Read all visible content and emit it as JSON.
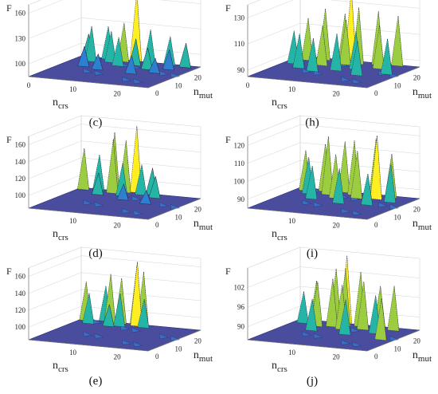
{
  "chart_data": [
    {
      "type": "surface",
      "caption": "(c)",
      "zlabel": "F",
      "xlabel": "n",
      "xlabel_sub": "crs",
      "ylabel": "n",
      "ylabel_sub": "mut",
      "x_ticks": [
        "0",
        "10",
        "20"
      ],
      "y_ticks": [
        "0",
        "10",
        "20"
      ],
      "z_ticks": [
        "100",
        "130",
        "160"
      ],
      "zlim": [
        85,
        170
      ],
      "peaks": [
        {
          "crs": 3,
          "mut": 3,
          "F": 115
        },
        {
          "crs": 5,
          "mut": 6,
          "F": 128
        },
        {
          "crs": 7,
          "mut": 2,
          "F": 125
        },
        {
          "crs": 9,
          "mut": 5,
          "F": 123
        },
        {
          "crs": 11,
          "mut": 3,
          "F": 132
        },
        {
          "crs": 12,
          "mut": 8,
          "F": 120
        },
        {
          "crs": 13,
          "mut": 1,
          "F": 168
        },
        {
          "crs": 15,
          "mut": 6,
          "F": 118
        },
        {
          "crs": 17,
          "mut": 3,
          "F": 127
        },
        {
          "crs": 19,
          "mut": 9,
          "F": 112
        },
        {
          "crs": 21,
          "mut": 2,
          "F": 120
        },
        {
          "crs": 23,
          "mut": 7,
          "F": 110
        },
        {
          "crs": 6,
          "mut": 12,
          "F": 110
        },
        {
          "crs": 10,
          "mut": 14,
          "F": 105
        },
        {
          "crs": 18,
          "mut": 15,
          "F": 108
        },
        {
          "crs": 25,
          "mut": 3,
          "F": 115
        },
        {
          "crs": 22,
          "mut": 12,
          "F": 104
        }
      ]
    },
    {
      "type": "surface",
      "caption": "(h)",
      "zlabel": "F",
      "xlabel": "n",
      "xlabel_sub": "crs",
      "ylabel": "n",
      "ylabel_sub": "mut",
      "x_ticks": [
        "0",
        "10",
        "20"
      ],
      "y_ticks": [
        "0",
        "10",
        "20"
      ],
      "z_ticks": [
        "90",
        "110",
        "130"
      ],
      "zlim": [
        85,
        140
      ],
      "peaks": [
        {
          "crs": 4,
          "mut": 5,
          "F": 118
        },
        {
          "crs": 7,
          "mut": 3,
          "F": 125
        },
        {
          "crs": 9,
          "mut": 9,
          "F": 116
        },
        {
          "crs": 11,
          "mut": 2,
          "F": 122
        },
        {
          "crs": 12,
          "mut": 1,
          "F": 140
        },
        {
          "crs": 13,
          "mut": 6,
          "F": 120
        },
        {
          "crs": 15,
          "mut": 4,
          "F": 129
        },
        {
          "crs": 17,
          "mut": 10,
          "F": 115
        },
        {
          "crs": 19,
          "mut": 3,
          "F": 127
        },
        {
          "crs": 21,
          "mut": 7,
          "F": 119
        },
        {
          "crs": 23,
          "mut": 2,
          "F": 124
        },
        {
          "crs": 25,
          "mut": 12,
          "F": 113
        },
        {
          "crs": 6,
          "mut": 14,
          "F": 112
        },
        {
          "crs": 10,
          "mut": 16,
          "F": 111
        },
        {
          "crs": 14,
          "mut": 13,
          "F": 114
        },
        {
          "crs": 20,
          "mut": 16,
          "F": 112
        },
        {
          "crs": 3,
          "mut": 10,
          "F": 111
        }
      ]
    },
    {
      "type": "surface",
      "caption": "(d)",
      "zlabel": "F",
      "xlabel": "n",
      "xlabel_sub": "crs",
      "ylabel": "n",
      "ylabel_sub": "mut",
      "x_ticks": [
        "10",
        "20"
      ],
      "y_ticks": [
        "0",
        "10",
        "20"
      ],
      "z_ticks": [
        "100",
        "120",
        "140",
        "160"
      ],
      "zlim": [
        85,
        170
      ],
      "peaks": [
        {
          "crs": 2,
          "mut": 3,
          "F": 135
        },
        {
          "crs": 5,
          "mut": 2,
          "F": 128
        },
        {
          "crs": 8,
          "mut": 1,
          "F": 155
        },
        {
          "crs": 9,
          "mut": 4,
          "F": 150
        },
        {
          "crs": 11,
          "mut": 2,
          "F": 148
        },
        {
          "crs": 12,
          "mut": 6,
          "F": 125
        },
        {
          "crs": 13,
          "mut": 1,
          "F": 165
        },
        {
          "crs": 15,
          "mut": 3,
          "F": 122
        },
        {
          "crs": 17,
          "mut": 2,
          "F": 118
        },
        {
          "crs": 19,
          "mut": 5,
          "F": 112
        },
        {
          "crs": 7,
          "mut": 7,
          "F": 112
        },
        {
          "crs": 14,
          "mut": 10,
          "F": 105
        },
        {
          "crs": 20,
          "mut": 12,
          "F": 102
        }
      ]
    },
    {
      "type": "surface",
      "caption": "(i)",
      "zlabel": "F",
      "xlabel": "n",
      "xlabel_sub": "crs",
      "ylabel": "n",
      "ylabel_sub": "mut",
      "x_ticks": [
        "10",
        "20"
      ],
      "y_ticks": [
        "0",
        "10",
        "20"
      ],
      "z_ticks": [
        "90",
        "100",
        "110",
        "120"
      ],
      "zlim": [
        85,
        125
      ],
      "peaks": [
        {
          "crs": 3,
          "mut": 4,
          "F": 108
        },
        {
          "crs": 5,
          "mut": 7,
          "F": 106
        },
        {
          "crs": 7,
          "mut": 3,
          "F": 112
        },
        {
          "crs": 9,
          "mut": 6,
          "F": 118
        },
        {
          "crs": 11,
          "mut": 2,
          "F": 114
        },
        {
          "crs": 12,
          "mut": 9,
          "F": 110
        },
        {
          "crs": 14,
          "mut": 4,
          "F": 116
        },
        {
          "crs": 16,
          "mut": 7,
          "F": 112
        },
        {
          "crs": 18,
          "mut": 2,
          "F": 117
        },
        {
          "crs": 20,
          "mut": 6,
          "F": 121
        },
        {
          "crs": 22,
          "mut": 3,
          "F": 110
        },
        {
          "crs": 24,
          "mut": 8,
          "F": 107
        },
        {
          "crs": 8,
          "mut": 12,
          "F": 104
        },
        {
          "crs": 15,
          "mut": 14,
          "F": 105
        },
        {
          "crs": 21,
          "mut": 13,
          "F": 103
        }
      ]
    },
    {
      "type": "surface",
      "caption": "(e)",
      "zlabel": "F",
      "xlabel": "n",
      "xlabel_sub": "crs",
      "ylabel": "n",
      "ylabel_sub": "mut",
      "x_ticks": [
        "10",
        "20"
      ],
      "y_ticks": [
        "0",
        "10",
        "20"
      ],
      "z_ticks": [
        "100",
        "120",
        "140",
        "160"
      ],
      "zlim": [
        85,
        170
      ],
      "peaks": [
        {
          "crs": 2,
          "mut": 2,
          "F": 132
        },
        {
          "crs": 4,
          "mut": 5,
          "F": 122
        },
        {
          "crs": 6,
          "mut": 1,
          "F": 128
        },
        {
          "crs": 8,
          "mut": 3,
          "F": 145
        },
        {
          "crs": 10,
          "mut": 2,
          "F": 140
        },
        {
          "crs": 11,
          "mut": 5,
          "F": 125
        },
        {
          "crs": 13,
          "mut": 1,
          "F": 155
        },
        {
          "crs": 14,
          "mut": 3,
          "F": 162
        },
        {
          "crs": 15,
          "mut": 2,
          "F": 150
        },
        {
          "crs": 16,
          "mut": 4,
          "F": 120
        },
        {
          "crs": 9,
          "mut": 6,
          "F": 112
        }
      ]
    },
    {
      "type": "surface",
      "caption": "(j)",
      "zlabel": "F",
      "xlabel": "n",
      "xlabel_sub": "crs",
      "ylabel": "n",
      "ylabel_sub": "mut",
      "x_ticks": [
        "10",
        "20"
      ],
      "y_ticks": [
        "0",
        "10",
        "20"
      ],
      "z_ticks": [
        "90",
        "96",
        "102"
      ],
      "zlim": [
        86,
        108
      ],
      "peaks": [
        {
          "crs": 3,
          "mut": 5,
          "F": 96
        },
        {
          "crs": 5,
          "mut": 3,
          "F": 99
        },
        {
          "crs": 7,
          "mut": 7,
          "F": 100
        },
        {
          "crs": 9,
          "mut": 2,
          "F": 103
        },
        {
          "crs": 10,
          "mut": 6,
          "F": 101
        },
        {
          "crs": 11,
          "mut": 1,
          "F": 107
        },
        {
          "crs": 12,
          "mut": 4,
          "F": 104
        },
        {
          "crs": 13,
          "mut": 8,
          "F": 100
        },
        {
          "crs": 15,
          "mut": 3,
          "F": 103
        },
        {
          "crs": 17,
          "mut": 6,
          "F": 101
        },
        {
          "crs": 19,
          "mut": 2,
          "F": 99
        },
        {
          "crs": 21,
          "mut": 9,
          "F": 98
        },
        {
          "crs": 23,
          "mut": 4,
          "F": 100
        },
        {
          "crs": 8,
          "mut": 12,
          "F": 96
        },
        {
          "crs": 16,
          "mut": 13,
          "F": 97
        },
        {
          "crs": 25,
          "mut": 15,
          "F": 99
        }
      ]
    }
  ],
  "colors": {
    "base": "#2a2e8c",
    "low": "#2f7fd0",
    "mid": "#25b5a6",
    "high": "#9ccc3f",
    "top": "#ffee22",
    "grid": "#d4d4d4",
    "axis": "#777777"
  }
}
